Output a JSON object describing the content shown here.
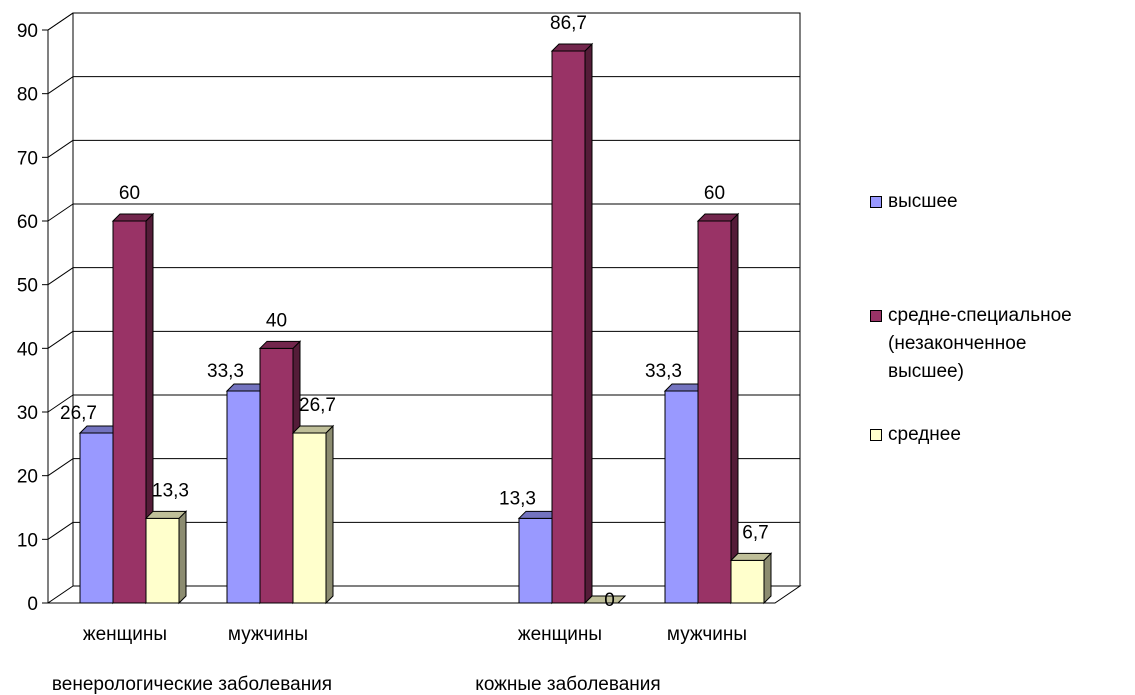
{
  "chart_data": {
    "type": "bar",
    "view": "3d-clustered-column",
    "groups": [
      {
        "label": "венерологические заболевания",
        "categories": [
          "женщины",
          "мужчины"
        ]
      },
      {
        "label": "кожные заболевания",
        "categories": [
          "женщины",
          "мужчины"
        ]
      }
    ],
    "series": [
      {
        "name": "высшее",
        "color": "#9999ff",
        "values": [
          26.7,
          33.3,
          13.3,
          33.3
        ],
        "labels": [
          "26,7",
          "33,3",
          "13,3",
          "33,3"
        ]
      },
      {
        "name": "средне-специальное\n(незаконченное\nвысшее)",
        "color": "#993366",
        "values": [
          60,
          40,
          86.7,
          60
        ],
        "labels": [
          "60",
          "40",
          "86,7",
          "60"
        ]
      },
      {
        "name": "среднее",
        "color": "#ffffcc",
        "values": [
          13.3,
          26.7,
          0,
          6.7
        ],
        "labels": [
          "13,3",
          "26,7",
          "0",
          "6,7"
        ]
      }
    ],
    "ylim": [
      0,
      90
    ],
    "yticks": [
      0,
      10,
      20,
      30,
      40,
      50,
      60,
      70,
      80,
      90
    ],
    "grid": true,
    "legend": "right"
  }
}
